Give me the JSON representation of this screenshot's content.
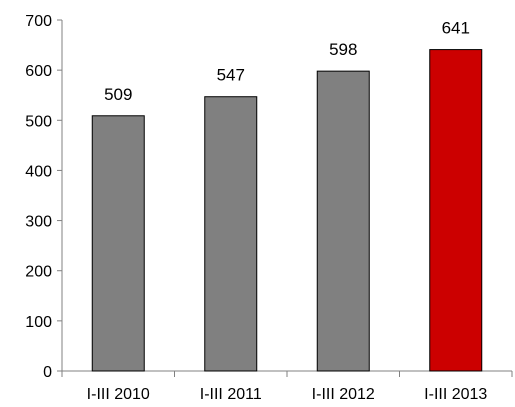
{
  "chart_data": {
    "type": "bar",
    "title": "",
    "xlabel": "",
    "ylabel": "",
    "categories": [
      "I-III 2010",
      "I-III 2011",
      "I-III 2012",
      "I-III 2013"
    ],
    "values": [
      509,
      547,
      598,
      641
    ],
    "data_labels": [
      "509",
      "547",
      "598",
      "641"
    ],
    "ylim": [
      0,
      700
    ],
    "yticks": [
      0,
      100,
      200,
      300,
      400,
      500,
      600,
      700
    ],
    "bar_colors": [
      "#808080",
      "#808080",
      "#808080",
      "#cc0000"
    ],
    "grid": false,
    "legend": "none"
  }
}
